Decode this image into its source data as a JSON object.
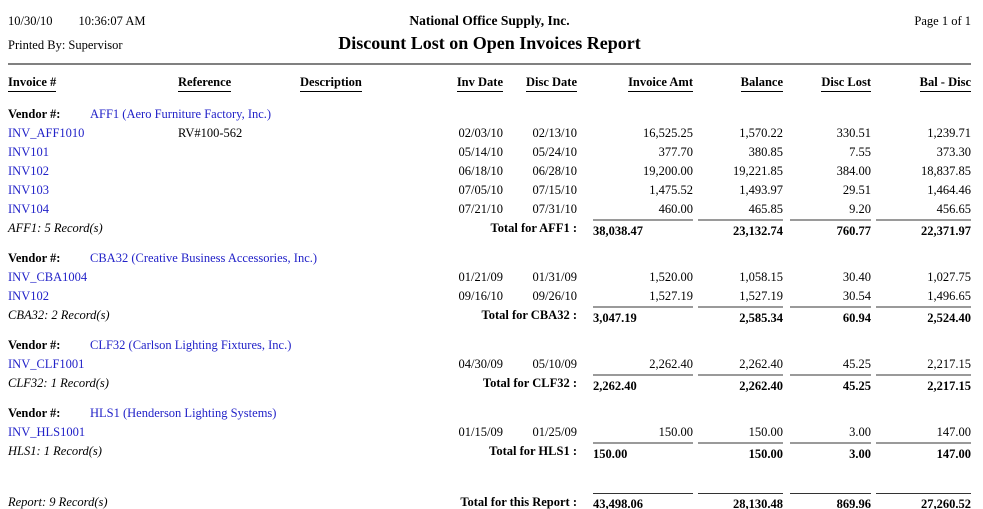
{
  "page": {
    "print_date": "10/30/10",
    "print_time": "10:36:07 AM",
    "printed_by": "Printed By: Supervisor",
    "company": "National Office Supply, Inc.",
    "title": "Discount Lost on Open Invoices Report",
    "page_info": "Page 1 of 1"
  },
  "columns": [
    "Invoice #",
    "Reference",
    "Description",
    "Inv Date",
    "Disc Date",
    "Invoice Amt",
    "Balance",
    "Disc Lost",
    "Bal - Disc"
  ],
  "vendor_label": "Vendor #:",
  "vendors": [
    {
      "name": "AFF1 (Aero Furniture Factory, Inc.)",
      "rows": [
        {
          "invoice": "INV_AFF1010",
          "reference": "RV#100-562",
          "description": "",
          "inv_date": "02/03/10",
          "disc_date": "02/13/10",
          "invoice_amt": "16,525.25",
          "balance": "1,570.22",
          "disc_lost": "330.51",
          "bal_disc": "1,239.71"
        },
        {
          "invoice": "INV101",
          "reference": "",
          "description": "",
          "inv_date": "05/14/10",
          "disc_date": "05/24/10",
          "invoice_amt": "377.70",
          "balance": "380.85",
          "disc_lost": "7.55",
          "bal_disc": "373.30"
        },
        {
          "invoice": "INV102",
          "reference": "",
          "description": "",
          "inv_date": "06/18/10",
          "disc_date": "06/28/10",
          "invoice_amt": "19,200.00",
          "balance": "19,221.85",
          "disc_lost": "384.00",
          "bal_disc": "18,837.85"
        },
        {
          "invoice": "INV103",
          "reference": "",
          "description": "",
          "inv_date": "07/05/10",
          "disc_date": "07/15/10",
          "invoice_amt": "1,475.52",
          "balance": "1,493.97",
          "disc_lost": "29.51",
          "bal_disc": "1,464.46"
        },
        {
          "invoice": "INV104",
          "reference": "",
          "description": "",
          "inv_date": "07/21/10",
          "disc_date": "07/31/10",
          "invoice_amt": "460.00",
          "balance": "465.85",
          "disc_lost": "9.20",
          "bal_disc": "456.65"
        }
      ],
      "record_count": "AFF1: 5 Record(s)",
      "total_label": "Total for AFF1 :",
      "totals": {
        "invoice_amt": "38,038.47",
        "balance": "23,132.74",
        "disc_lost": "760.77",
        "bal_disc": "22,371.97"
      }
    },
    {
      "name": "CBA32 (Creative Business Accessories, Inc.)",
      "rows": [
        {
          "invoice": "INV_CBA1004",
          "reference": "",
          "description": "",
          "inv_date": "01/21/09",
          "disc_date": "01/31/09",
          "invoice_amt": "1,520.00",
          "balance": "1,058.15",
          "disc_lost": "30.40",
          "bal_disc": "1,027.75"
        },
        {
          "invoice": "INV102",
          "reference": "",
          "description": "",
          "inv_date": "09/16/10",
          "disc_date": "09/26/10",
          "invoice_amt": "1,527.19",
          "balance": "1,527.19",
          "disc_lost": "30.54",
          "bal_disc": "1,496.65"
        }
      ],
      "record_count": "CBA32: 2 Record(s)",
      "total_label": "Total for CBA32 :",
      "totals": {
        "invoice_amt": "3,047.19",
        "balance": "2,585.34",
        "disc_lost": "60.94",
        "bal_disc": "2,524.40"
      }
    },
    {
      "name": "CLF32 (Carlson Lighting Fixtures, Inc.)",
      "rows": [
        {
          "invoice": "INV_CLF1001",
          "reference": "",
          "description": "",
          "inv_date": "04/30/09",
          "disc_date": "05/10/09",
          "invoice_amt": "2,262.40",
          "balance": "2,262.40",
          "disc_lost": "45.25",
          "bal_disc": "2,217.15"
        }
      ],
      "record_count": "CLF32: 1 Record(s)",
      "total_label": "Total for CLF32 :",
      "totals": {
        "invoice_amt": "2,262.40",
        "balance": "2,262.40",
        "disc_lost": "45.25",
        "bal_disc": "2,217.15"
      }
    },
    {
      "name": "HLS1 (Henderson Lighting Systems)",
      "rows": [
        {
          "invoice": "INV_HLS1001",
          "reference": "",
          "description": "",
          "inv_date": "01/15/09",
          "disc_date": "01/25/09",
          "invoice_amt": "150.00",
          "balance": "150.00",
          "disc_lost": "3.00",
          "bal_disc": "147.00"
        }
      ],
      "record_count": "HLS1: 1 Record(s)",
      "total_label": "Total for HLS1 :",
      "totals": {
        "invoice_amt": "150.00",
        "balance": "150.00",
        "disc_lost": "3.00",
        "bal_disc": "147.00"
      }
    }
  ],
  "report_total": {
    "record_count": "Report: 9 Record(s)",
    "total_label": "Total for this Report :",
    "totals": {
      "invoice_amt": "43,498.06",
      "balance": "28,130.48",
      "disc_lost": "869.96",
      "bal_disc": "27,260.52"
    }
  },
  "colors": {
    "link_blue": "#2222c8",
    "rule_gray": "#9a9a9a"
  }
}
